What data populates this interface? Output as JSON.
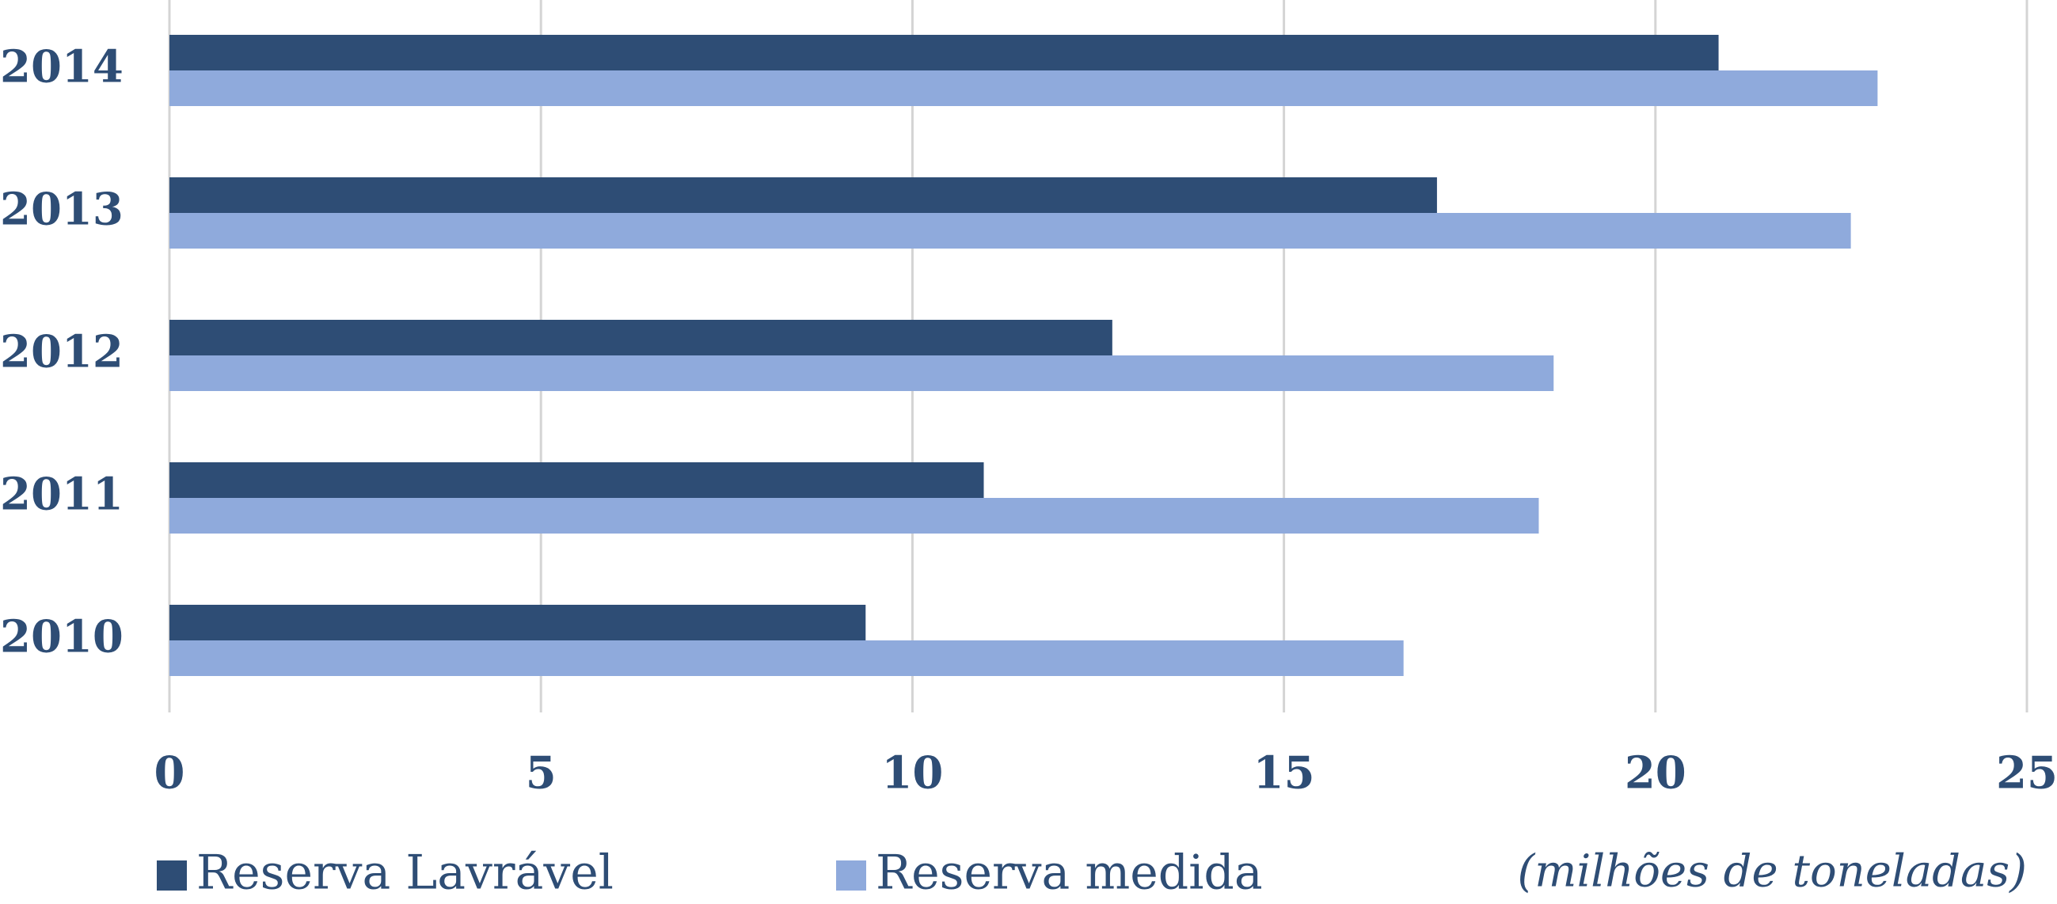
{
  "chart_data": {
    "type": "hbar",
    "xlabel": "(milhões de toneladas)",
    "categories": [
      "2010",
      "2011",
      "2012",
      "2013",
      "2014"
    ],
    "series": [
      {
        "name": "Reserva Lavrável",
        "color": "#2e4d75",
        "values": [
          9.37,
          10.96,
          12.69,
          17.06,
          20.85
        ]
      },
      {
        "name": "Reserva medida",
        "color": "#8faadc",
        "values": [
          16.61,
          18.43,
          18.63,
          22.63,
          22.99
        ]
      }
    ],
    "xlim": [
      0,
      25
    ],
    "xticks": [
      0,
      5,
      10,
      15,
      20,
      25
    ],
    "grid": true,
    "legend": "bottom"
  }
}
